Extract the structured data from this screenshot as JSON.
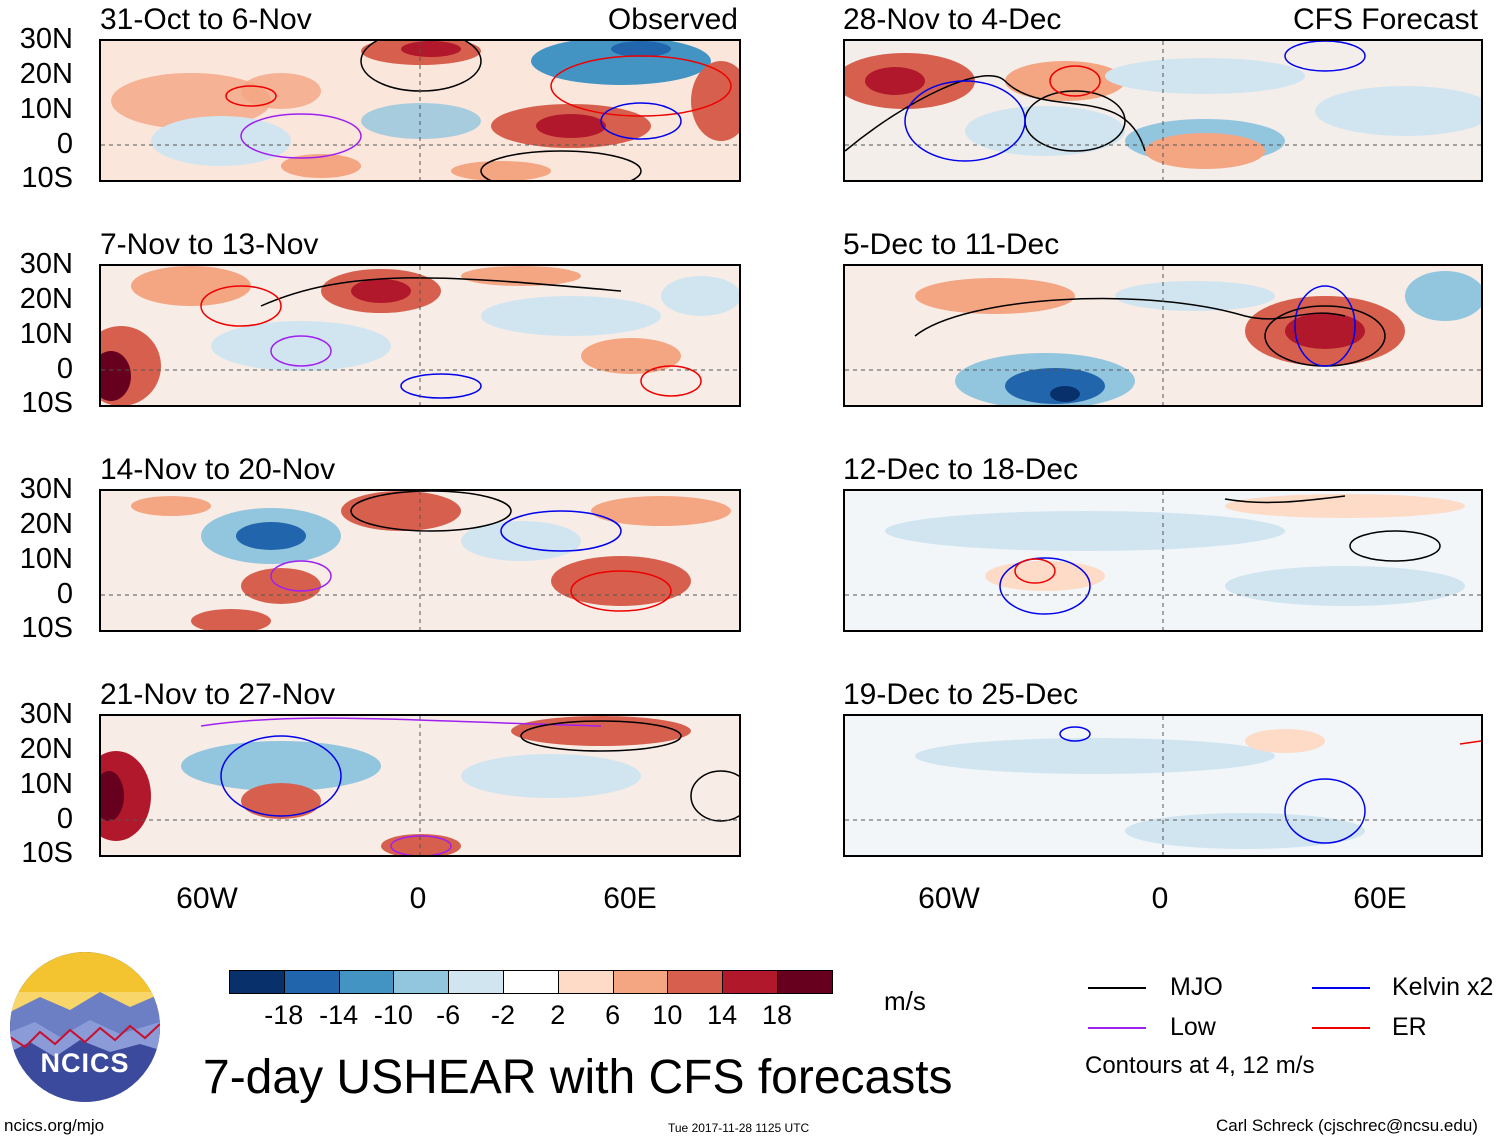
{
  "title": "7-day USHEAR with CFS forecasts",
  "units": "m/s",
  "footer": {
    "left": "ncics.org/mjo",
    "center": "Tue 2017-11-28 1125 UTC",
    "right": "Carl Schreck (cjschrec@ncsu.edu)"
  },
  "logo": {
    "text": "NCICS"
  },
  "lat_labels": [
    "30N",
    "20N",
    "10N",
    "0",
    "10S"
  ],
  "lon_labels": [
    "60W",
    "0",
    "60E"
  ],
  "columns": {
    "left_tag": "Observed",
    "right_tag": "CFS Forecast"
  },
  "panels_left": [
    {
      "title": "31-Oct to 6-Nov"
    },
    {
      "title": "7-Nov to 13-Nov"
    },
    {
      "title": "14-Nov to 20-Nov"
    },
    {
      "title": "21-Nov to 27-Nov"
    }
  ],
  "panels_right": [
    {
      "title": "28-Nov to 4-Dec"
    },
    {
      "title": "5-Dec to 11-Dec"
    },
    {
      "title": "12-Dec to 18-Dec"
    },
    {
      "title": "19-Dec to 25-Dec"
    }
  ],
  "colorbar": {
    "colors": [
      "#08306b",
      "#2166ac",
      "#4393c3",
      "#92c5de",
      "#d1e5f0",
      "#ffffff",
      "#fddbc7",
      "#f4a582",
      "#d6604d",
      "#b2182b",
      "#67001f"
    ],
    "labels": [
      "-18",
      "-14",
      "-10",
      "-6",
      "-2",
      "2",
      "6",
      "10",
      "14",
      "18"
    ]
  },
  "legend": {
    "items": [
      {
        "label": "MJO",
        "color": "#000000"
      },
      {
        "label": "Kelvin x2",
        "color": "#0000ee"
      },
      {
        "label": "Low",
        "color": "#a020f0"
      },
      {
        "label": "ER",
        "color": "#ee0000"
      }
    ],
    "note": "Contours at 4, 12 m/s"
  }
}
